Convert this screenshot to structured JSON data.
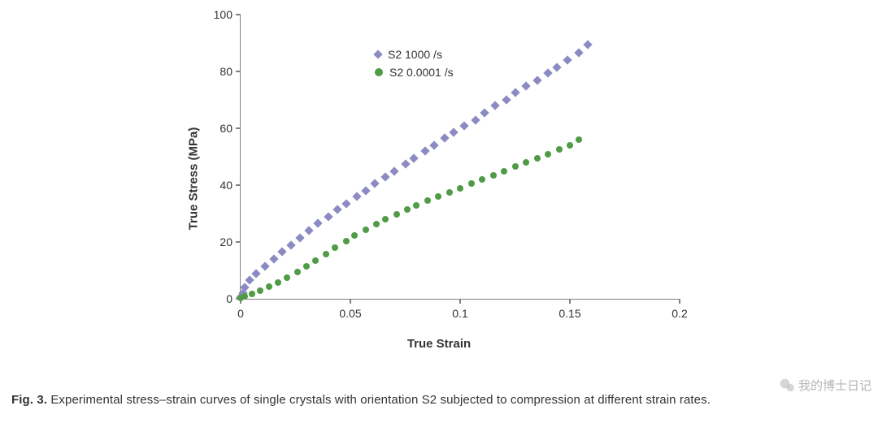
{
  "chart": {
    "type": "scatter",
    "background_color": "#ffffff",
    "axis_color": "#808080",
    "tick_label_color": "#333333",
    "tick_label_fontsize": 14,
    "axis_title_fontsize": 15,
    "axis_title_fontweight": "bold",
    "x_axis": {
      "title": "True Strain",
      "min": 0,
      "max": 0.2,
      "ticks": [
        0,
        0.05,
        0.1,
        0.15,
        0.2
      ]
    },
    "y_axis": {
      "title": "True Stress (MPa)",
      "min": 0,
      "max": 100,
      "ticks": [
        0,
        20,
        40,
        60,
        80,
        100
      ]
    },
    "legend": {
      "position": "inside-top-left",
      "items": [
        {
          "label": "S2 1000 /s",
          "series": "s1000"
        },
        {
          "label": "S2 0.0001 /s",
          "series": "s0001"
        }
      ]
    },
    "series": {
      "s1000": {
        "label": "S2 1000 /s",
        "marker": "diamond",
        "marker_size": 8,
        "color": "#8b8bc4",
        "x": [
          0.0,
          0.001,
          0.002,
          0.004,
          0.007,
          0.011,
          0.015,
          0.019,
          0.023,
          0.027,
          0.031,
          0.035,
          0.04,
          0.044,
          0.048,
          0.053,
          0.057,
          0.061,
          0.066,
          0.07,
          0.075,
          0.079,
          0.084,
          0.088,
          0.093,
          0.097,
          0.102,
          0.107,
          0.111,
          0.116,
          0.121,
          0.125,
          0.13,
          0.135,
          0.14,
          0.144,
          0.149,
          0.154,
          0.158
        ],
        "y": [
          0.5,
          2.0,
          4.0,
          6.5,
          9.0,
          11.5,
          14.0,
          16.5,
          19.0,
          21.5,
          24.0,
          26.5,
          29.0,
          31.5,
          33.5,
          36.0,
          38.0,
          40.5,
          43.0,
          45.0,
          47.5,
          49.5,
          52.0,
          54.0,
          56.5,
          58.5,
          61.0,
          63.0,
          65.5,
          68.0,
          70.0,
          72.5,
          75.0,
          77.0,
          79.5,
          81.5,
          84.0,
          86.5,
          89.5
        ]
      },
      "s0001": {
        "label": "S2 0.0001 /s",
        "marker": "circle",
        "marker_size": 8,
        "color": "#4f9b46",
        "x": [
          0.0,
          0.002,
          0.005,
          0.009,
          0.013,
          0.017,
          0.021,
          0.026,
          0.03,
          0.034,
          0.039,
          0.043,
          0.048,
          0.052,
          0.057,
          0.062,
          0.066,
          0.071,
          0.076,
          0.08,
          0.085,
          0.09,
          0.095,
          0.1,
          0.105,
          0.11,
          0.115,
          0.12,
          0.125,
          0.13,
          0.135,
          0.14,
          0.145,
          0.15,
          0.154
        ],
        "y": [
          0.3,
          0.8,
          1.6,
          2.8,
          4.2,
          5.8,
          7.5,
          9.5,
          11.5,
          13.5,
          15.8,
          18.0,
          20.2,
          22.3,
          24.3,
          26.2,
          28.0,
          29.8,
          31.5,
          33.0,
          34.5,
          36.0,
          37.5,
          39.0,
          40.5,
          42.0,
          43.5,
          45.0,
          46.5,
          48.0,
          49.5,
          51.0,
          52.5,
          54.0,
          56.0
        ]
      }
    }
  },
  "caption": {
    "label": "Fig. 3.",
    "text": "Experimental stress–strain curves of single crystals with orientation S2 subjected to compression at different strain rates."
  },
  "watermark": {
    "text": "我的博士日记",
    "icon": "wechat-icon",
    "color": "rgba(120,120,120,0.55)"
  }
}
